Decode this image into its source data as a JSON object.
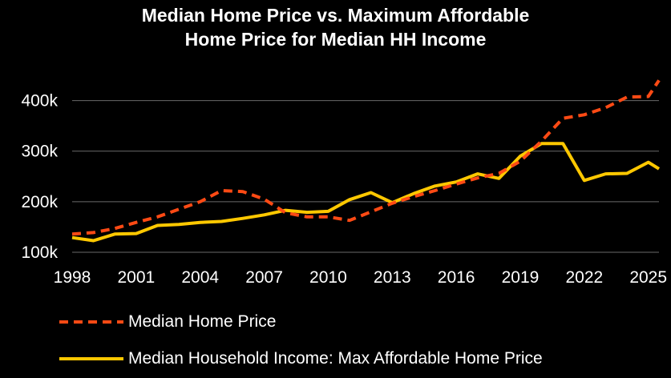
{
  "title_line1": "Median Home Price vs. Maximum Affordable",
  "title_line2": "Home Price for Median HH Income",
  "colors": {
    "home_price": "#FF4A14",
    "affordable": "#FFC800",
    "grid": "#6a6a6a"
  },
  "chart_data": {
    "type": "line",
    "title": "Median Home Price vs. Maximum Affordable Home Price for Median HH Income",
    "x": [
      1998,
      1999,
      2000,
      2001,
      2002,
      2003,
      2004,
      2005,
      2006,
      2007,
      2008,
      2009,
      2010,
      2011,
      2012,
      2013,
      2014,
      2015,
      2016,
      2017,
      2018,
      2019,
      2020,
      2021,
      2022,
      2023,
      2024,
      2025,
      2025.5
    ],
    "xlim": [
      1998,
      2025.5
    ],
    "xticks": [
      1998,
      2001,
      2004,
      2007,
      2010,
      2013,
      2016,
      2019,
      2022,
      2025
    ],
    "xtick_labels": [
      "1998",
      "2001",
      "2004",
      "2007",
      "2010",
      "2013",
      "2016",
      "2019",
      "2022",
      "2025"
    ],
    "ylim": [
      100000,
      450000
    ],
    "yticks": [
      100000,
      200000,
      300000,
      400000
    ],
    "ytick_labels": [
      "100k",
      "200k",
      "300k",
      "400k"
    ],
    "grid": true,
    "legend_position": "bottom",
    "series": [
      {
        "name": "Median Home Price",
        "style": "dashed",
        "values": [
          136000,
          139000,
          147000,
          159000,
          170000,
          185000,
          200000,
          222000,
          220000,
          205000,
          178000,
          170000,
          170000,
          163000,
          180000,
          197000,
          210000,
          222000,
          235000,
          247000,
          256000,
          280000,
          320000,
          365000,
          372000,
          386000,
          407000,
          408000,
          440000
        ]
      },
      {
        "name": "Median Household Income: Max Affordable Home Price",
        "style": "solid",
        "values": [
          129000,
          123000,
          136000,
          137000,
          153000,
          155000,
          159000,
          161000,
          167000,
          174000,
          183000,
          179000,
          181000,
          204000,
          218000,
          198000,
          216000,
          231000,
          239000,
          255000,
          246000,
          290000,
          315000,
          315000,
          242000,
          255000,
          256000,
          278000,
          265000
        ]
      }
    ]
  }
}
